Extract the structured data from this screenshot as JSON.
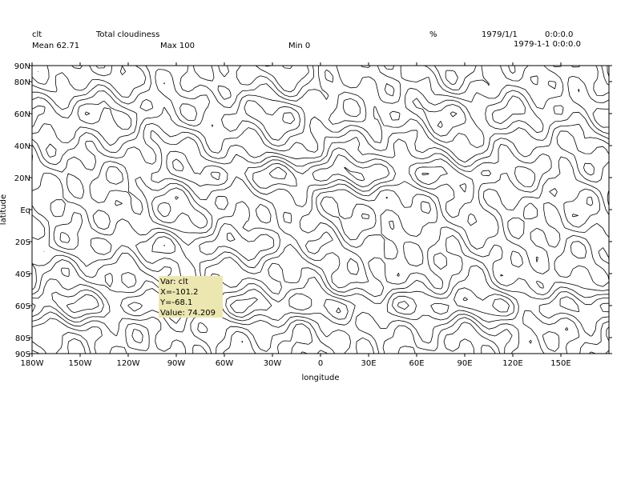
{
  "header": {
    "var_name": "clt",
    "long_name": "Total cloudiness",
    "units": "%",
    "date": "1979/1/1",
    "time": "0:0:0.0",
    "mean": "Mean 62.71",
    "max": "Max 100",
    "min": "Min 0",
    "datetime": "1979-1-1 0:0:0.0"
  },
  "tooltip": {
    "var": "Var: clt",
    "x": "X=-101.2",
    "y": "Y=-68.1",
    "value": "Value: 74.209"
  },
  "chart_data": {
    "type": "contour",
    "title": "Total cloudiness",
    "variable": "clt",
    "units": "%",
    "xlabel": "longitude",
    "ylabel": "latitude",
    "xlim": [
      -180,
      180
    ],
    "ylim": [
      -90,
      90
    ],
    "x_ticks": [
      {
        "value": -180,
        "label": "180W"
      },
      {
        "value": -150,
        "label": "150W"
      },
      {
        "value": -120,
        "label": "120W"
      },
      {
        "value": -90,
        "label": "90W"
      },
      {
        "value": -60,
        "label": "60W"
      },
      {
        "value": -30,
        "label": "30W"
      },
      {
        "value": 0,
        "label": "0"
      },
      {
        "value": 30,
        "label": "30E"
      },
      {
        "value": 60,
        "label": "60E"
      },
      {
        "value": 90,
        "label": "90E"
      },
      {
        "value": 120,
        "label": "120E"
      },
      {
        "value": 150,
        "label": "150E"
      }
    ],
    "y_ticks": [
      {
        "value": 90,
        "label": "90N"
      },
      {
        "value": 80,
        "label": "80N"
      },
      {
        "value": 60,
        "label": "60N"
      },
      {
        "value": 40,
        "label": "40N"
      },
      {
        "value": 20,
        "label": "20N"
      },
      {
        "value": 0,
        "label": "Eq"
      },
      {
        "value": -20,
        "label": "20S"
      },
      {
        "value": -40,
        "label": "40S"
      },
      {
        "value": -60,
        "label": "60S"
      },
      {
        "value": -80,
        "label": "80S"
      },
      {
        "value": -90,
        "label": "90S"
      }
    ],
    "mean": 62.71,
    "max": 100,
    "min": 0,
    "grid": false,
    "contour_color": "#000000"
  }
}
